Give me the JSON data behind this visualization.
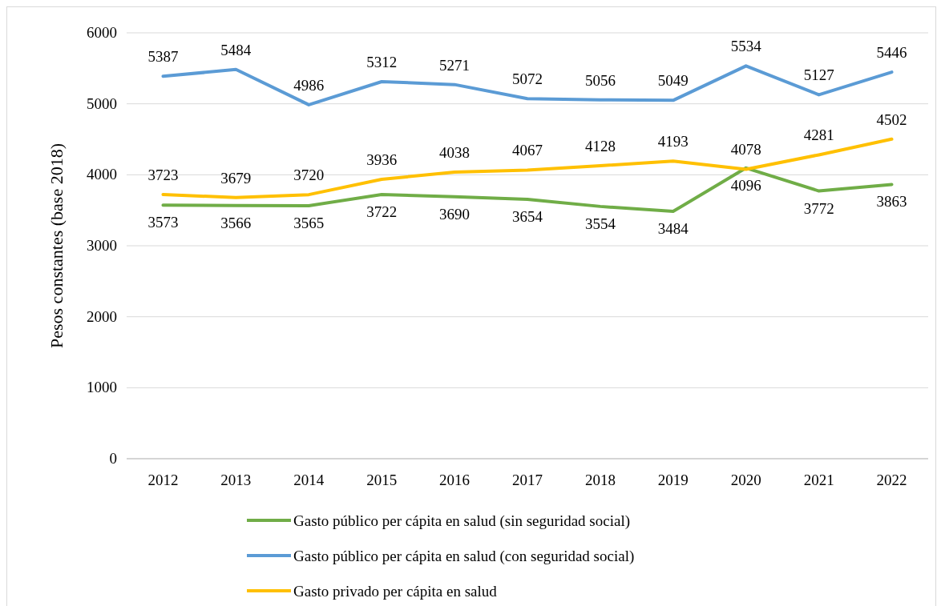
{
  "chart_data": {
    "type": "line",
    "ylabel": "Pesos constantes (base 2018)",
    "categories": [
      "2012",
      "2013",
      "2014",
      "2015",
      "2016",
      "2017",
      "2018",
      "2019",
      "2020",
      "2021",
      "2022"
    ],
    "series": [
      {
        "name": "Gasto público per cápita en salud (sin seguridad social)",
        "color": "#70ad47",
        "values": [
          3573,
          3566,
          3565,
          3722,
          3690,
          3654,
          3554,
          3484,
          4096,
          3772,
          3863
        ]
      },
      {
        "name": "Gasto público per cápita en salud (con seguridad social)",
        "color": "#5b9bd5",
        "values": [
          5387,
          5484,
          4986,
          5312,
          5271,
          5072,
          5056,
          5049,
          5534,
          5127,
          5446
        ]
      },
      {
        "name": "Gasto privado per cápita en salud",
        "color": "#ffc000",
        "values": [
          3723,
          3679,
          3720,
          3936,
          4038,
          4067,
          4128,
          4193,
          4078,
          4281,
          4502
        ]
      }
    ],
    "ylim": [
      0,
      6000
    ],
    "yticks": [
      0,
      1000,
      2000,
      3000,
      4000,
      5000,
      6000
    ],
    "grid": "y",
    "legend": "bottom",
    "data_labels": true,
    "marker": "none",
    "line_style": "solid"
  }
}
